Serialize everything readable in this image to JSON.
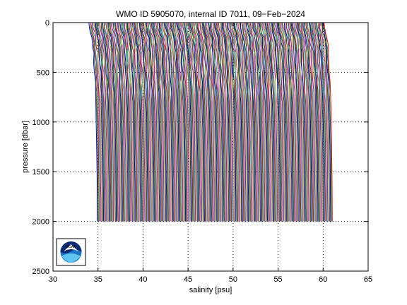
{
  "chart_data": {
    "type": "line",
    "title": "WMO ID 5905070, internal ID 7011, 09−Feb−2024",
    "xlabel": "salinity [psu]",
    "ylabel": "pressure [dbar]",
    "xlim": [
      30,
      65
    ],
    "ylim": [
      0,
      2500
    ],
    "y_reversed": true,
    "xticks": [
      "30",
      "35",
      "40",
      "45",
      "50",
      "55",
      "60",
      "65"
    ],
    "yticks": [
      "0",
      "500",
      "1000",
      "1500",
      "2000",
      "2500"
    ],
    "grid": "dotted",
    "profile_shift_psu": 0.1,
    "num_profiles": 262,
    "base_profile": {
      "pressure": [
        0,
        50,
        100,
        150,
        200,
        250,
        300,
        400,
        500,
        600,
        700,
        800,
        900,
        1000,
        1200,
        1400,
        1600,
        1800,
        2000
      ],
      "salinity": [
        34.05,
        34.08,
        34.2,
        34.35,
        34.4,
        34.45,
        34.5,
        34.55,
        34.62,
        34.68,
        34.72,
        34.75,
        34.78,
        34.8,
        34.84,
        34.87,
        34.89,
        34.91,
        34.92
      ]
    },
    "series_colors": [
      "#0000ff",
      "#008000",
      "#ff0000",
      "#00bfbf",
      "#bf00bf",
      "#bfbf00",
      "#404040"
    ]
  },
  "logo": {
    "name": "noaa-logo",
    "text": "NOAA"
  }
}
